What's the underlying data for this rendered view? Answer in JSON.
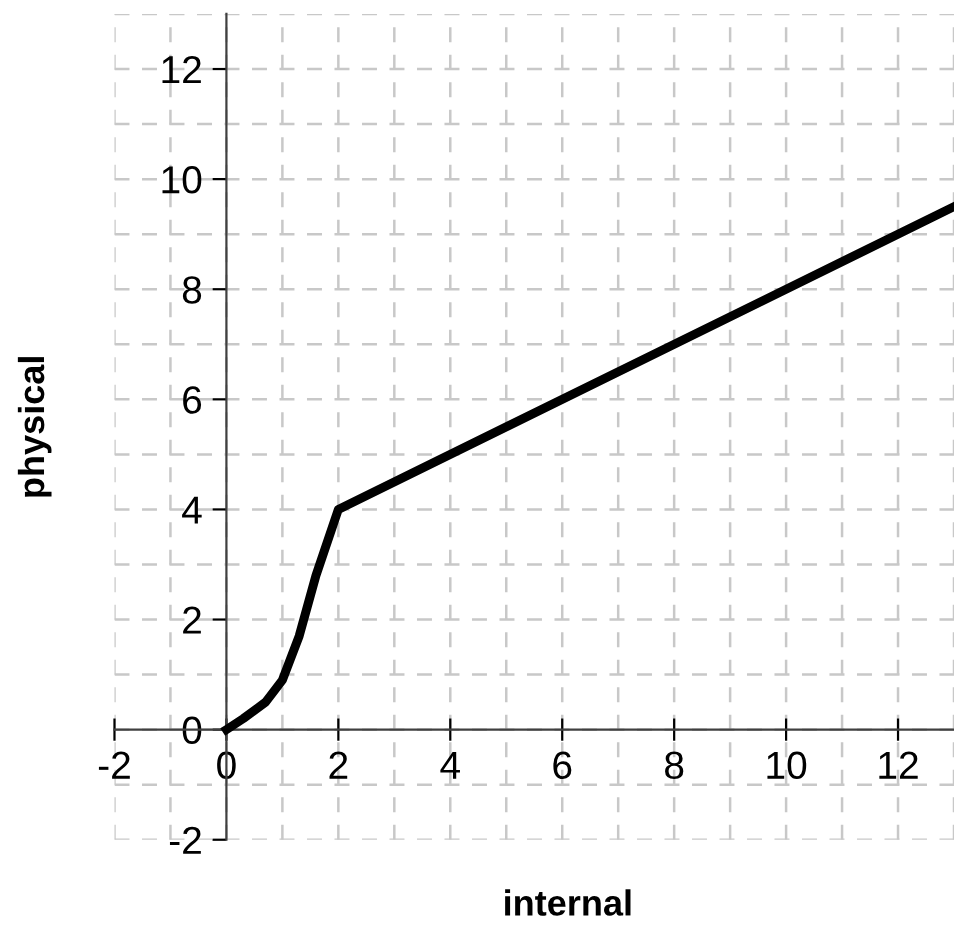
{
  "chart_data": {
    "type": "line",
    "xlabel": "internal",
    "ylabel": "physical",
    "x": [
      0,
      0.3,
      0.7,
      1,
      1.3,
      1.6,
      2,
      13
    ],
    "series": [
      {
        "color": "#000000",
        "values": [
          0,
          0.2,
          0.5,
          0.9,
          1.7,
          2.8,
          4,
          9.5
        ]
      }
    ],
    "xlim": [
      -2,
      13
    ],
    "ylim": [
      -2,
      13
    ],
    "xticks": [
      -2,
      0,
      2,
      4,
      6,
      8,
      10,
      12
    ],
    "yticks": [
      -2,
      0,
      2,
      4,
      6,
      8,
      10,
      12
    ],
    "grid": true,
    "marker": "none",
    "line_style": "solid"
  }
}
